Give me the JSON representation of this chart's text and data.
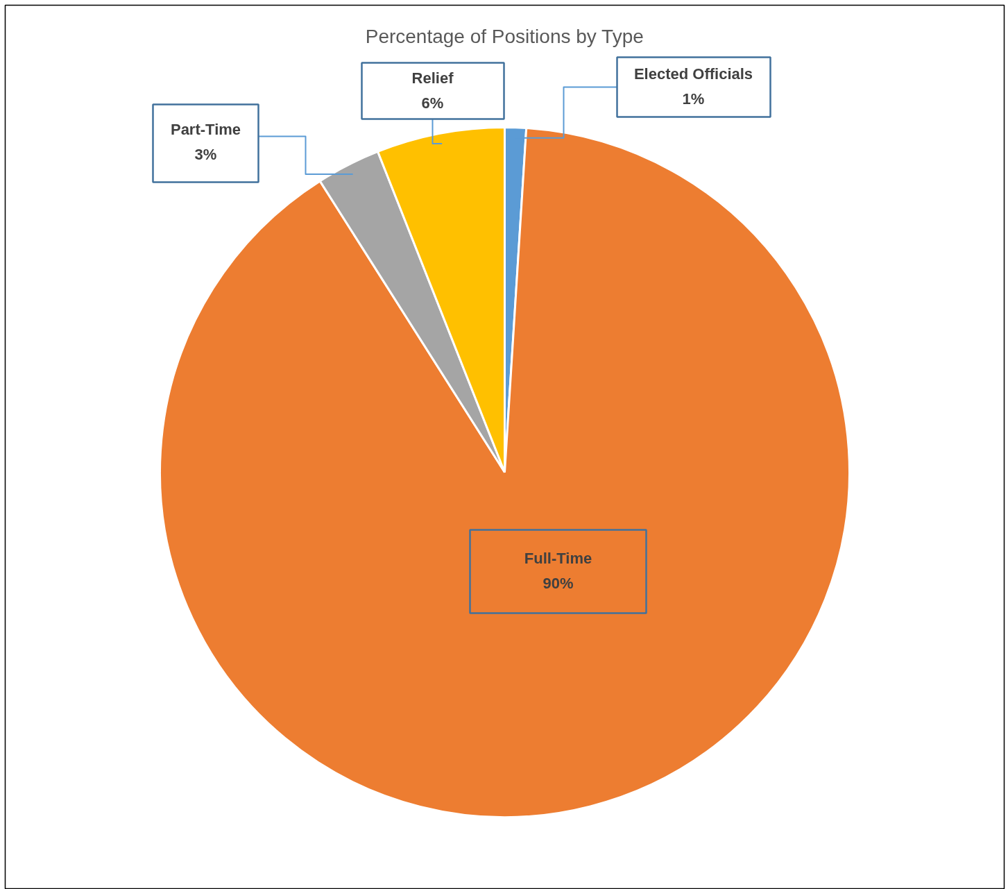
{
  "chart_data": {
    "type": "pie",
    "title": "Percentage of Positions by Type",
    "categories": [
      "Elected Officials",
      "Full-Time",
      "Part-Time",
      "Relief"
    ],
    "values": [
      1,
      90,
      3,
      6
    ],
    "colors": [
      "#5b9bd5",
      "#ed7d31",
      "#a5a5a5",
      "#ffc000"
    ],
    "value_labels": [
      "1%",
      "90%",
      "3%",
      "6%"
    ]
  }
}
